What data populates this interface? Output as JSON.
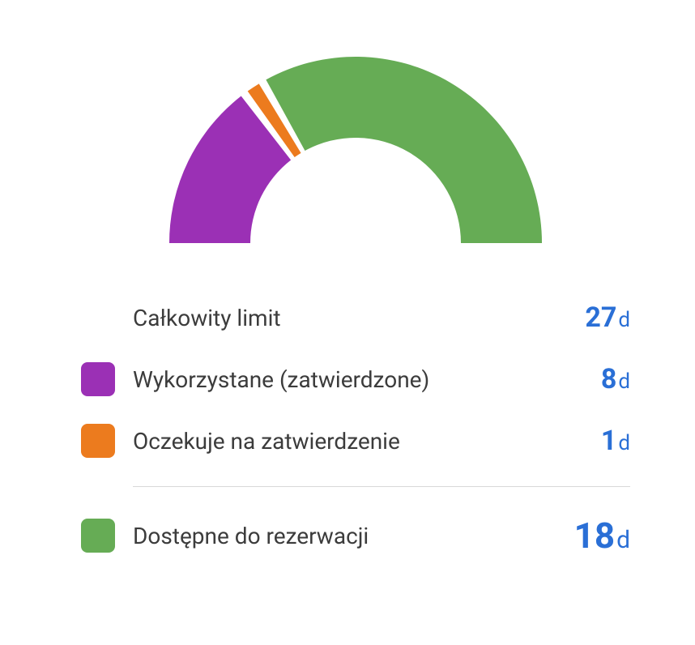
{
  "chart": {
    "type": "half-donut",
    "outer_radius": 230,
    "inner_radius": 130,
    "gap_deg": 2.5,
    "background_color": "#ffffff",
    "segments": [
      {
        "key": "used",
        "value": 8,
        "color": "#9b30b5"
      },
      {
        "key": "pending",
        "value": 1,
        "color": "#ec7b1e"
      },
      {
        "key": "available",
        "value": 18,
        "color": "#66ac55"
      }
    ]
  },
  "accent_color": "#2a6fd6",
  "text_color": "#3c3c3c",
  "unit": "d",
  "rows": {
    "total": {
      "label": "Całkowity limit",
      "value": 27,
      "swatch": null,
      "big": false
    },
    "used": {
      "label": "Wykorzystane (zatwierdzone)",
      "value": 8,
      "swatch": "#9b30b5",
      "big": false
    },
    "pending": {
      "label": "Oczekuje na zatwierdzenie",
      "value": 1,
      "swatch": "#ec7b1e",
      "big": false
    },
    "available": {
      "label": "Dostępne do rezerwacji",
      "value": 18,
      "swatch": "#66ac55",
      "big": true
    }
  }
}
